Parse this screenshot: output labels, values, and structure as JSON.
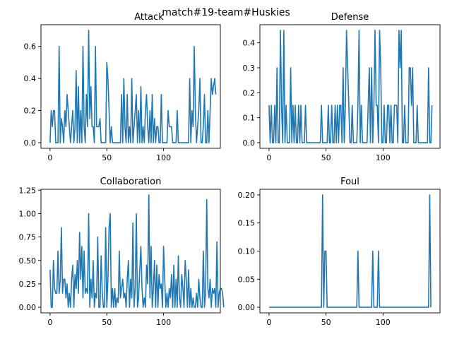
{
  "figure": {
    "suptitle": "match#19-team#Huskies"
  },
  "series_color": "#1f77b4",
  "chart_data": [
    {
      "type": "line",
      "title": "Attack",
      "xlim": [
        -8,
        150
      ],
      "ylim": [
        -0.035,
        0.735
      ],
      "xticks": [
        0,
        50,
        100
      ],
      "yticks": [
        0.0,
        0.2,
        0.4,
        0.6
      ],
      "ytick_labels": [
        "0.0",
        "0.2",
        "0.4",
        "0.6"
      ],
      "x_start": 0,
      "y": [
        0.0,
        0.2,
        0.1,
        0.2,
        0.2,
        0.0,
        0.0,
        0.0,
        0.6,
        0.0,
        0.15,
        0.1,
        0.0,
        0.2,
        0.1,
        0.3,
        0.2,
        0.1,
        0.0,
        0.1,
        0.2,
        0.0,
        0.1,
        0.45,
        0.0,
        0.35,
        0.0,
        0.2,
        0.0,
        0.6,
        0.1,
        0.0,
        0.3,
        0.1,
        0.7,
        0.15,
        0.35,
        0.1,
        0.1,
        0.0,
        0.6,
        0.1,
        0.1,
        0.1,
        0.15,
        0.0,
        0.0,
        0.0,
        0.0,
        0.0,
        0.5,
        0.4,
        0.2,
        0.0,
        0.1,
        0.0,
        0.0,
        0.0,
        0.0,
        0.0,
        0.0,
        0.0,
        0.0,
        0.3,
        0.0,
        0.4,
        0.1,
        0.0,
        0.3,
        0.0,
        0.1,
        0.0,
        0.4,
        0.0,
        0.1,
        0.2,
        0.3,
        0.0,
        0.2,
        0.0,
        0.35,
        0.0,
        0.1,
        0.0,
        0.2,
        0.3,
        0.1,
        0.0,
        0.2,
        0.0,
        0.3,
        0.0,
        0.15,
        0.0,
        0.1,
        0.1,
        0.0,
        0.0,
        0.3,
        0.0,
        0.0,
        0.0,
        0.0,
        0.0,
        0.2,
        0.1,
        0.1,
        0.1,
        0.0,
        0.0,
        0.0,
        0.0,
        0.2,
        0.0,
        0.0,
        0.0,
        0.0,
        0.0,
        0.0,
        0.0,
        0.0,
        0.0,
        0.0,
        0.4,
        0.0,
        0.2,
        0.1,
        0.6,
        0.2,
        0.0,
        0.1,
        0.2,
        0.4,
        0.0,
        0.0,
        0.1,
        0.3,
        0.0,
        0.0,
        0.2,
        0.0,
        0.2,
        0.4,
        0.3,
        0.35,
        0.4,
        0.3
      ]
    },
    {
      "type": "line",
      "title": "Defense",
      "xlim": [
        -8,
        150
      ],
      "ylim": [
        -0.0225,
        0.4725
      ],
      "xticks": [
        0,
        50,
        100
      ],
      "yticks": [
        0.0,
        0.1,
        0.2,
        0.3,
        0.4
      ],
      "ytick_labels": [
        "0.0",
        "0.1",
        "0.2",
        "0.3",
        "0.4"
      ],
      "x_start": 0,
      "y": [
        0.15,
        0.0,
        0.15,
        0.0,
        0.0,
        0.15,
        0.0,
        0.3,
        0.0,
        0.0,
        0.45,
        0.15,
        0.0,
        0.45,
        0.0,
        0.15,
        0.0,
        0.0,
        0.0,
        0.3,
        0.0,
        0.15,
        0.0,
        0.15,
        0.0,
        0.0,
        0.15,
        0.0,
        0.15,
        0.0,
        0.0,
        0.0,
        0.15,
        0.0,
        0.0,
        0.0,
        0.0,
        0.0,
        0.0,
        0.0,
        0.0,
        0.0,
        0.0,
        0.0,
        0.0,
        0.0,
        0.15,
        0.0,
        0.0,
        0.0,
        0.0,
        0.0,
        0.15,
        0.0,
        0.0,
        0.15,
        0.0,
        0.0,
        0.15,
        0.0,
        0.15,
        0.0,
        0.15,
        0.15,
        0.0,
        0.3,
        0.0,
        0.15,
        0.45,
        0.3,
        0.15,
        0.0,
        0.0,
        0.15,
        0.0,
        0.0,
        0.0,
        0.0,
        0.15,
        0.45,
        0.0,
        0.15,
        0.0,
        0.0,
        0.0,
        0.0,
        0.0,
        0.15,
        0.3,
        0.0,
        0.3,
        0.0,
        0.15,
        0.45,
        0.15,
        0.15,
        0.0,
        0.45,
        0.3,
        0.0,
        0.0,
        0.15,
        0.0,
        0.0,
        0.15,
        0.15,
        0.0,
        0.15,
        0.0,
        0.0,
        0.15,
        0.15,
        0.15,
        0.0,
        0.45,
        0.3,
        0.45,
        0.0,
        0.0,
        0.15,
        0.0,
        0.0,
        0.0,
        0.3,
        0.3,
        0.15,
        0.3,
        0.0,
        0.0,
        0.0,
        0.15,
        0.0,
        0.0,
        0.0,
        0.0,
        0.0,
        0.0,
        0.0,
        0.0,
        0.0,
        0.3,
        0.0,
        0.0,
        0.15
      ]
    },
    {
      "type": "line",
      "title": "Collaboration",
      "xlim": [
        -8,
        150
      ],
      "ylim": [
        -0.06,
        1.26
      ],
      "xticks": [
        0,
        50,
        100
      ],
      "yticks": [
        0.0,
        0.25,
        0.5,
        0.75,
        1.0,
        1.25
      ],
      "ytick_labels": [
        "0.00",
        "0.25",
        "0.50",
        "0.75",
        "1.00",
        "1.25"
      ],
      "x_start": 0,
      "y": [
        0.4,
        0.0,
        0.0,
        0.5,
        0.2,
        0.15,
        0.15,
        0.6,
        0.15,
        0.3,
        0.85,
        0.15,
        0.3,
        0.3,
        0.1,
        0.25,
        0.0,
        0.15,
        0.0,
        0.3,
        0.45,
        0.0,
        0.35,
        0.2,
        0.5,
        0.15,
        0.8,
        0.3,
        0.65,
        0.1,
        0.6,
        0.15,
        0.2,
        0.15,
        1.0,
        0.0,
        0.3,
        0.1,
        0.5,
        0.0,
        0.15,
        0.1,
        0.75,
        0.0,
        0.0,
        0.55,
        0.15,
        0.0,
        0.0,
        0.85,
        0.0,
        0.3,
        0.85,
        1.0,
        0.0,
        0.2,
        0.0,
        0.2,
        0.0,
        0.1,
        0.05,
        0.6,
        0.1,
        0.2,
        0.3,
        0.1,
        0.15,
        0.0,
        0.3,
        0.5,
        0.0,
        0.3,
        0.1,
        0.9,
        0.0,
        0.2,
        1.0,
        0.0,
        0.1,
        0.4,
        0.65,
        0.2,
        0.0,
        0.1,
        0.0,
        0.45,
        0.25,
        1.2,
        0.1,
        0.65,
        0.0,
        0.2,
        0.5,
        0.0,
        0.45,
        0.0,
        0.35,
        0.2,
        0.25,
        0.0,
        0.65,
        0.3,
        0.0,
        0.15,
        0.0,
        0.2,
        0.1,
        0.35,
        0.0,
        0.45,
        0.0,
        0.3,
        0.0,
        0.55,
        0.1,
        0.0,
        0.35,
        0.2,
        0.0,
        0.5,
        0.3,
        0.0,
        0.4,
        0.0,
        0.2,
        0.0,
        0.1,
        0.0,
        0.0,
        0.15,
        0.0,
        0.3,
        0.1,
        0.0,
        0.0,
        0.6,
        0.0,
        0.15,
        1.15,
        0.2,
        0.1,
        0.3,
        0.0,
        0.2,
        0.15,
        0.2,
        0.0,
        0.7,
        0.0,
        0.15,
        0.2,
        0.2,
        0.15,
        0.0
      ]
    },
    {
      "type": "line",
      "title": "Foul",
      "xlim": [
        -8,
        150
      ],
      "ylim": [
        -0.01,
        0.21
      ],
      "xticks": [
        0,
        50,
        100
      ],
      "yticks": [
        0.0,
        0.05,
        0.1,
        0.15,
        0.2
      ],
      "ytick_labels": [
        "0.00",
        "0.05",
        "0.10",
        "0.15",
        "0.20"
      ],
      "x_start": 0,
      "y": [
        0,
        0,
        0,
        0,
        0,
        0,
        0,
        0,
        0,
        0,
        0,
        0,
        0,
        0,
        0,
        0,
        0,
        0,
        0,
        0,
        0,
        0,
        0,
        0,
        0,
        0,
        0,
        0,
        0,
        0,
        0,
        0,
        0,
        0,
        0,
        0,
        0,
        0,
        0,
        0,
        0,
        0,
        0,
        0,
        0,
        0,
        0,
        0.2,
        0,
        0.1,
        0.1,
        0,
        0,
        0,
        0,
        0,
        0,
        0,
        0,
        0,
        0,
        0,
        0,
        0,
        0,
        0,
        0,
        0,
        0,
        0,
        0,
        0,
        0,
        0,
        0,
        0,
        0,
        0,
        0.1,
        0,
        0,
        0,
        0,
        0,
        0,
        0,
        0,
        0,
        0,
        0,
        0,
        0.1,
        0,
        0,
        0,
        0,
        0.1,
        0,
        0,
        0,
        0,
        0,
        0,
        0,
        0,
        0,
        0,
        0,
        0,
        0,
        0,
        0,
        0,
        0,
        0,
        0,
        0,
        0,
        0,
        0,
        0,
        0,
        0,
        0,
        0,
        0,
        0,
        0,
        0,
        0,
        0,
        0,
        0,
        0,
        0,
        0,
        0,
        0,
        0,
        0,
        0,
        0.2,
        0
      ]
    }
  ]
}
